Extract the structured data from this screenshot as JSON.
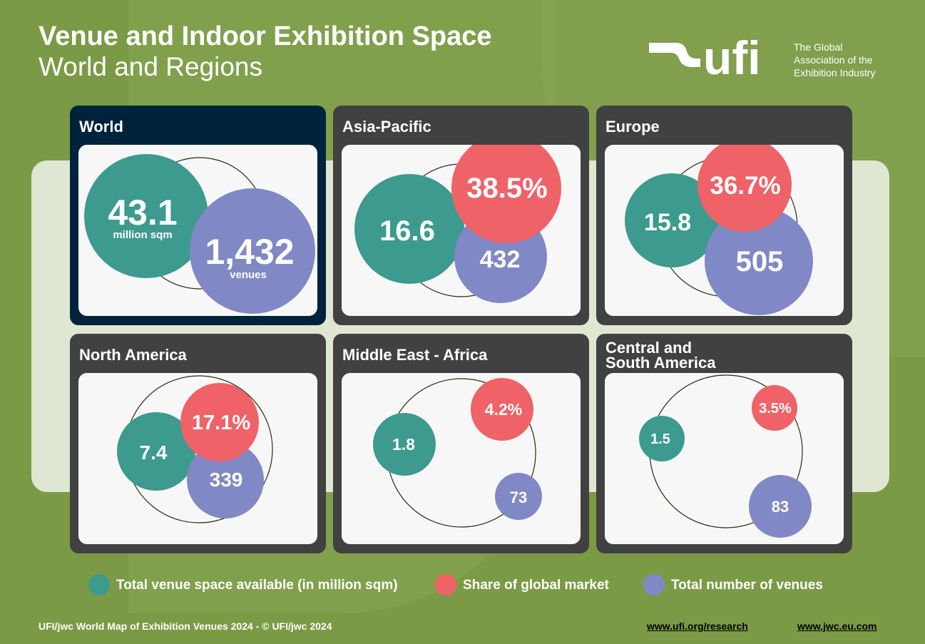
{
  "header": {
    "title_line1": "Venue and Indoor Exhibition Space",
    "title_line2": "World and Regions"
  },
  "logo": {
    "wordmark": "ufi",
    "tagline_lines": [
      "The Global",
      "Association of the",
      "Exhibition Industry"
    ]
  },
  "colors": {
    "background": "#7b9a45",
    "space": "#3d9a8e",
    "share": "#ee6268",
    "venues": "#8188c6",
    "world_card": "#00233d",
    "region_card": "#414141"
  },
  "chart_data": {
    "type": "bubble",
    "title": "Venue and Indoor Exhibition Space — World and Regions",
    "series": [
      {
        "key": "space",
        "name": "Total venue space available (in million sqm)"
      },
      {
        "key": "share",
        "name": "Share of global market"
      },
      {
        "key": "venues",
        "name": "Total number of venues"
      }
    ],
    "regions": [
      {
        "name": "World",
        "space": 43.1,
        "space_label": "43.1",
        "space_unit": "million sqm",
        "share": null,
        "share_label": "",
        "venues": 1432,
        "venues_label": "1,432",
        "venues_unit": "venues"
      },
      {
        "name": "Asia-Pacific",
        "space": 16.6,
        "space_label": "16.6",
        "space_unit": "",
        "share": 38.5,
        "share_label": "38.5%",
        "venues": 432,
        "venues_label": "432",
        "venues_unit": ""
      },
      {
        "name": "Europe",
        "space": 15.8,
        "space_label": "15.8",
        "space_unit": "",
        "share": 36.7,
        "share_label": "36.7%",
        "venues": 505,
        "venues_label": "505",
        "venues_unit": ""
      },
      {
        "name": "North America",
        "space": 7.4,
        "space_label": "7.4",
        "space_unit": "",
        "share": 17.1,
        "share_label": "17.1%",
        "venues": 339,
        "venues_label": "339",
        "venues_unit": ""
      },
      {
        "name": "Middle East - Africa",
        "space": 1.8,
        "space_label": "1.8",
        "space_unit": "",
        "share": 4.2,
        "share_label": "4.2%",
        "venues": 73,
        "venues_label": "73",
        "venues_unit": ""
      },
      {
        "name": "Central and South America",
        "name_lines": [
          "Central and",
          "South America"
        ],
        "space": 1.5,
        "space_label": "1.5",
        "space_unit": "",
        "share": 3.5,
        "share_label": "3.5%",
        "venues": 83,
        "venues_label": "83",
        "venues_unit": ""
      }
    ]
  },
  "legend": {
    "space": "Total venue space available (in million sqm)",
    "share": "Share of global market",
    "venues": "Total number of venues"
  },
  "footer": {
    "source": "UFI/jwc World Map of Exhibition Venues 2024 - © UFI/jwc 2024",
    "link1": "www.ufi.org/research",
    "link2": "www.jwc.eu.com"
  }
}
